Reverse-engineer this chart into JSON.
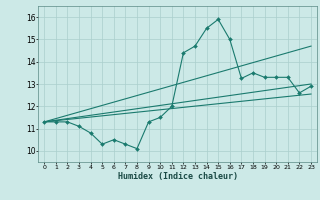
{
  "title": "",
  "xlabel": "Humidex (Indice chaleur)",
  "bg_color": "#cce9e7",
  "grid_color": "#aacfcd",
  "line_color": "#1a7a6e",
  "xlim": [
    -0.5,
    23.5
  ],
  "ylim": [
    9.5,
    16.5
  ],
  "xticks": [
    0,
    1,
    2,
    3,
    4,
    5,
    6,
    7,
    8,
    9,
    10,
    11,
    12,
    13,
    14,
    15,
    16,
    17,
    18,
    19,
    20,
    21,
    22,
    23
  ],
  "yticks": [
    10,
    11,
    12,
    13,
    14,
    15,
    16
  ],
  "series1_x": [
    0,
    1,
    2,
    3,
    4,
    5,
    6,
    7,
    8,
    9,
    10,
    11,
    12,
    13,
    14,
    15,
    16,
    17,
    18,
    19,
    20,
    21,
    22,
    23
  ],
  "series1_y": [
    11.3,
    11.3,
    11.3,
    11.1,
    10.8,
    10.3,
    10.5,
    10.3,
    10.1,
    11.3,
    11.5,
    12.0,
    14.4,
    14.7,
    15.5,
    15.9,
    15.0,
    13.25,
    13.5,
    13.3,
    13.3,
    13.3,
    12.6,
    12.9
  ],
  "series2_x": [
    0,
    23
  ],
  "series2_y": [
    11.3,
    13.0
  ],
  "series3_x": [
    0,
    23
  ],
  "series3_y": [
    11.3,
    14.7
  ],
  "series4_x": [
    0,
    23
  ],
  "series4_y": [
    11.3,
    12.55
  ]
}
